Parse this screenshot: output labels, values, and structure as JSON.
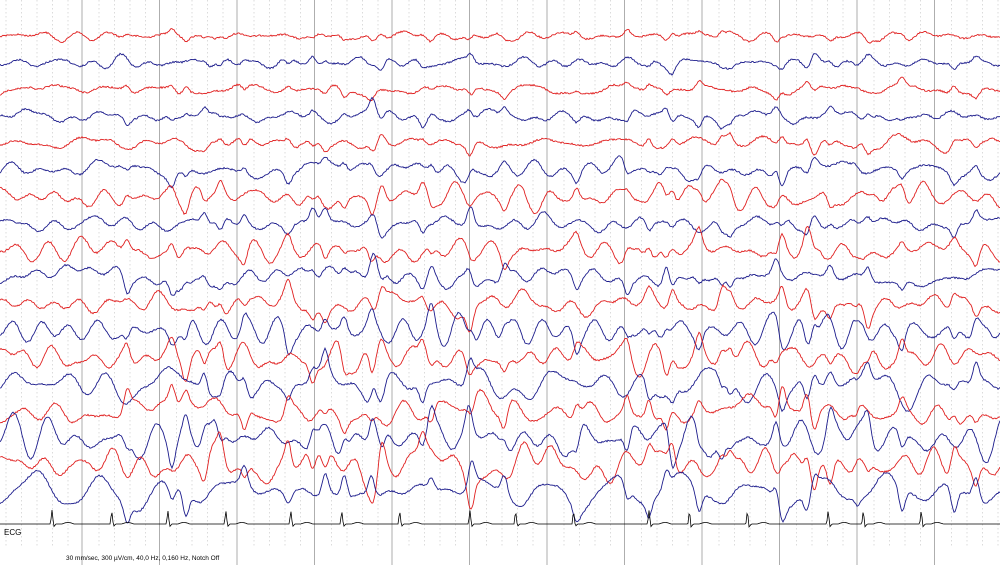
{
  "ecg_label": "ECG",
  "settings_text": "30 mm/sec, 300 µV/cm, 40,0 Hz, 0,160 Hz, Notch Off",
  "colors": {
    "background": "#ffffff",
    "major_gridline": "#9a9a9a",
    "minor_gridline": "#c4c4c4",
    "odd_channel": "#e02020",
    "even_channel": "#1c1c8c",
    "ecg": "#000000"
  },
  "chart_data": {
    "type": "line",
    "title": "",
    "grid": true,
    "channel_count": 18,
    "channel_colors": [
      "red",
      "blue",
      "red",
      "blue",
      "red",
      "blue",
      "red",
      "blue",
      "red",
      "blue",
      "red",
      "blue",
      "red",
      "blue",
      "red",
      "blue",
      "red",
      "blue"
    ],
    "ecg_channel": true,
    "ecg_beat_count": 17,
    "second_markers": 13
  }
}
